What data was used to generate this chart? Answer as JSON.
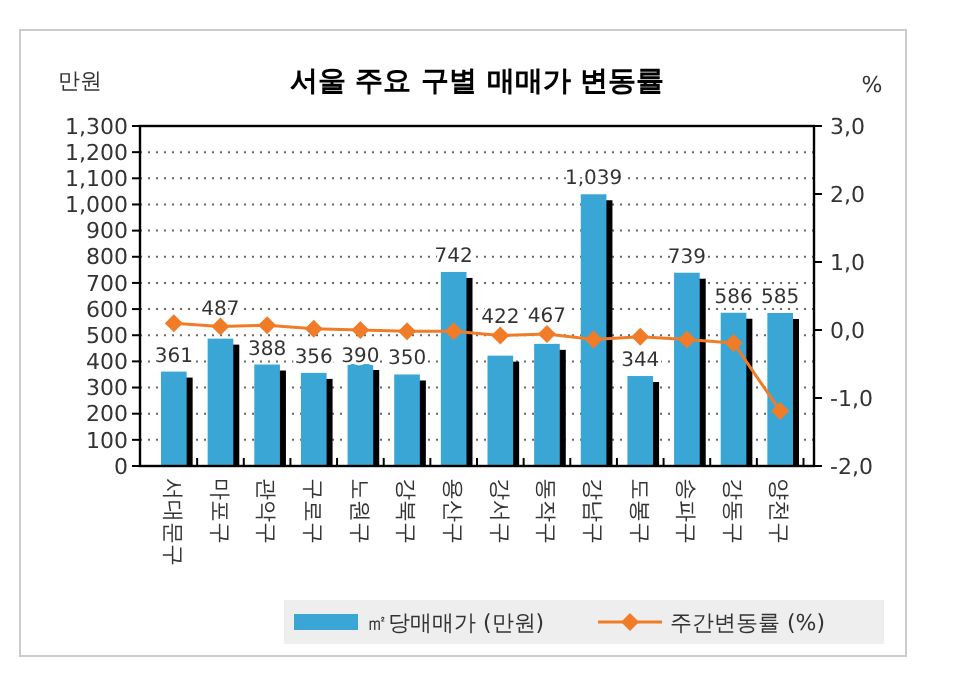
{
  "chart_data": {
    "type": "bar",
    "title": "서울 주요 구별 매매가 변동률",
    "ylabel": "만원",
    "y2label": "%",
    "categories": [
      "서대문구",
      "마포구",
      "관악구",
      "구로구",
      "노원구",
      "강북구",
      "용산구",
      "강서구",
      "동작구",
      "강남구",
      "도봉구",
      "송파구",
      "강동구",
      "양천구"
    ],
    "series": [
      {
        "name": "㎡당매매가 (만원)",
        "color": "#3aa6d6",
        "values": [
          361,
          487,
          388,
          356,
          390,
          350,
          742,
          422,
          467,
          1039,
          344,
          739,
          586,
          585
        ],
        "value_labels": [
          "361",
          "487",
          "388",
          "356",
          "390",
          "350",
          "742",
          "422",
          "467",
          "1,039",
          "344",
          "739",
          "586",
          "585"
        ]
      },
      {
        "name": "주간변동률 (%)",
        "type": "line",
        "axis": "y2",
        "color": "#f07c28",
        "marker": "diamond",
        "values": [
          0.1,
          0.05,
          0.07,
          0.02,
          0,
          -0.02,
          -0.02,
          -0.08,
          -0.06,
          -0.14,
          -0.1,
          -0.14,
          -0.19,
          -1.19
        ]
      }
    ],
    "ylim": [
      0,
      1300
    ],
    "yticks": [
      0,
      100,
      {
        "value": 200,
        "label": "200"
      },
      300,
      400,
      500,
      600,
      700,
      800,
      900,
      {
        "value": 1000,
        "label": "1,000"
      },
      {
        "value": 1100,
        "label": "1,100"
      },
      {
        "value": 1200,
        "label": "1,200"
      },
      {
        "value": 1300,
        "label": "1,300"
      }
    ],
    "y2lim": [
      -2,
      3
    ],
    "y2ticks": [
      {
        "value": -2,
        "label": "-2,0"
      },
      {
        "value": -1,
        "label": "-1,0"
      },
      {
        "value": 0,
        "label": "0,0"
      },
      {
        "value": 1,
        "label": "1,0"
      },
      {
        "value": 2,
        "label": "2,0"
      },
      {
        "value": 3,
        "label": "3,0"
      }
    ],
    "grid": "y",
    "legend": "bottom right"
  }
}
